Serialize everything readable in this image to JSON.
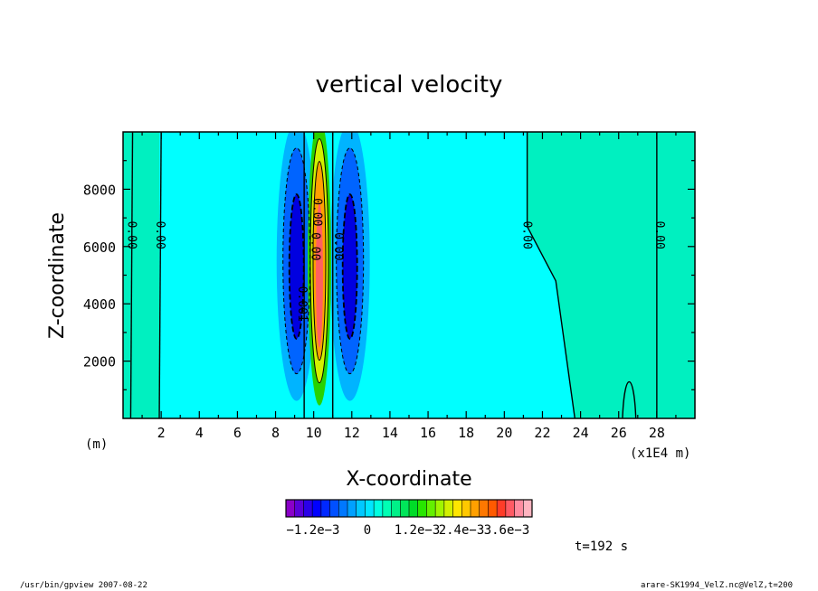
{
  "chart_data": {
    "type": "heatmap",
    "subtype": "filled-contour",
    "title": "vertical velocity",
    "xlabel": "X-coordinate",
    "ylabel": "Z-coordinate",
    "x_unit_left": "(m)",
    "x_unit_right": "(x1E4 m)",
    "xlim": [
      0,
      30
    ],
    "ylim": [
      0,
      10000
    ],
    "xticks": [
      "2",
      "4",
      "6",
      "8",
      "10",
      "12",
      "14",
      "16",
      "18",
      "20",
      "22",
      "24",
      "26",
      "28"
    ],
    "yticks": [
      "2000",
      "4000",
      "6000",
      "8000"
    ],
    "contour_labels": [
      "0.00",
      "0.00",
      "0.00",
      "0.00",
      "0.00",
      "0.00",
      "0.00",
      "0.001"
    ],
    "colorbar": {
      "labels": [
        "−1.2e−3",
        "0",
        "1.2e−3",
        "2.4e−3",
        "3.6e−3"
      ],
      "label_values": [
        -0.0012,
        0,
        0.0012,
        0.0024,
        0.0036
      ],
      "colors": [
        "#8a00c8",
        "#5a00d8",
        "#2a00e8",
        "#0000ff",
        "#0028ff",
        "#0050ff",
        "#0078ff",
        "#00a0ff",
        "#00c8ff",
        "#00e6ff",
        "#00ffe0",
        "#00ffb4",
        "#00f088",
        "#00e65a",
        "#00dc28",
        "#28e600",
        "#64f000",
        "#a0f500",
        "#d2f000",
        "#ffe600",
        "#ffc800",
        "#ffa000",
        "#ff7800",
        "#ff5a00",
        "#ff3c28",
        "#ff5a64",
        "#ff8ca0",
        "#ffb4c0"
      ]
    },
    "annotation": "t=192 s",
    "grid": false
  },
  "footer": {
    "left": "/usr/bin/gpview   2007-08-22",
    "right": "arare-SK1994_VelZ.nc@VelZ,t=200"
  },
  "colors": {
    "background_field": "#00ffff",
    "weak_positive": "#00f0c0",
    "negative_1": "#00b4ff",
    "negative_2": "#0064ff",
    "negative_3": "#0000e0",
    "positive_1": "#28d200",
    "positive_2": "#d2f000",
    "positive_3": "#ffa000",
    "positive_4": "#ff6060"
  }
}
